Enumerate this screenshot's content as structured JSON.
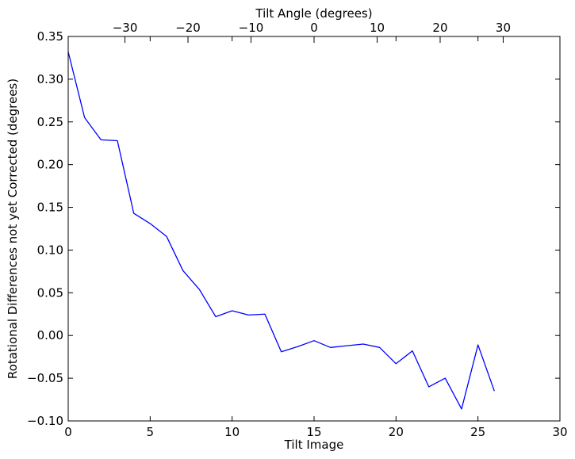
{
  "chart_data": {
    "type": "line",
    "title": "",
    "xlabel": "Tilt Image",
    "ylabel": "Rotational Differences not yet Corrected (degrees)",
    "top_xlabel": "Tilt Angle (degrees)",
    "xlim": [
      0,
      30
    ],
    "ylim": [
      -0.1,
      0.35
    ],
    "top_xlim": [
      -39,
      39
    ],
    "xticks": [
      0,
      5,
      10,
      15,
      20,
      25,
      30
    ],
    "xtick_labels": [
      "0",
      "5",
      "10",
      "15",
      "20",
      "25",
      "30"
    ],
    "yticks": [
      -0.1,
      -0.05,
      0.0,
      0.05,
      0.1,
      0.15,
      0.2,
      0.25,
      0.3,
      0.35
    ],
    "ytick_labels": [
      "−0.10",
      "−0.05",
      "0.00",
      "0.05",
      "0.10",
      "0.15",
      "0.20",
      "0.25",
      "0.30",
      "0.35"
    ],
    "top_xticks": [
      -30,
      -20,
      -10,
      0,
      10,
      20,
      30
    ],
    "top_xtick_labels": [
      "−30",
      "−20",
      "−10",
      "0",
      "10",
      "20",
      "30"
    ],
    "grid": false,
    "line_color": "#0000ff",
    "series": [
      {
        "x": [
          0,
          1,
          2,
          3,
          4,
          5,
          6,
          7,
          8,
          9,
          10,
          11,
          12,
          13,
          14,
          15,
          16,
          17,
          18,
          19,
          20,
          21,
          22,
          23,
          24,
          25,
          26
        ],
        "y": [
          0.332,
          0.255,
          0.229,
          0.228,
          0.143,
          0.131,
          0.116,
          0.076,
          0.054,
          0.022,
          0.029,
          0.024,
          0.025,
          -0.019,
          -0.013,
          -0.006,
          -0.014,
          -0.012,
          -0.01,
          -0.014,
          -0.033,
          -0.018,
          -0.06,
          -0.05,
          -0.086,
          -0.011,
          -0.065
        ]
      }
    ]
  }
}
